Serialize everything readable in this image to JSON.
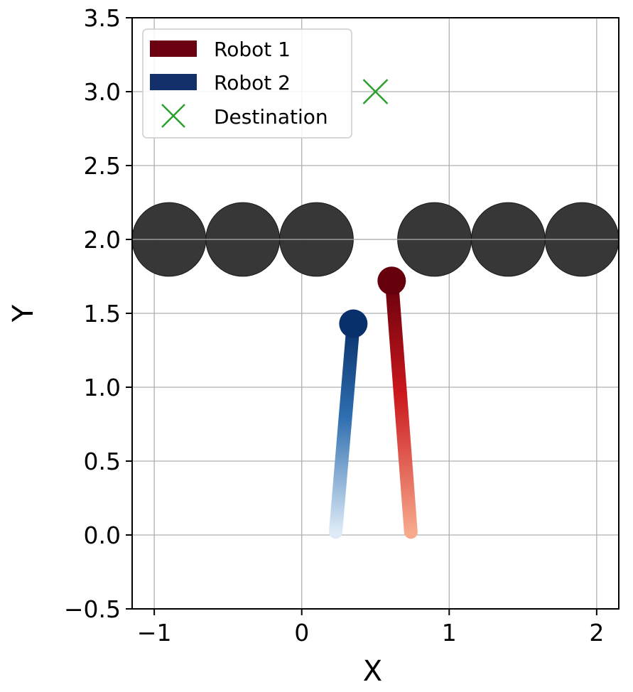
{
  "chart_data": {
    "type": "line",
    "title": "",
    "xlabel": "X",
    "ylabel": "Y",
    "xlim": [
      -1.15,
      2.15
    ],
    "ylim": [
      -0.5,
      3.5
    ],
    "xticks": [
      -1,
      0,
      1,
      2
    ],
    "xtick_labels": [
      "−1",
      "0",
      "1",
      "2"
    ],
    "yticks": [
      -0.5,
      0.0,
      0.5,
      1.0,
      1.5,
      2.0,
      2.5,
      3.0,
      3.5
    ],
    "ytick_labels": [
      "−0.5",
      "0.0",
      "0.5",
      "1.0",
      "1.5",
      "2.0",
      "2.5",
      "3.0",
      "3.5"
    ],
    "grid": true,
    "legend_position": "top-left",
    "series": [
      {
        "name": "Robot 1",
        "kind": "trajectory",
        "color_start": "#f7a98c",
        "color_end": "#67000d",
        "legend_color": "#6b0010",
        "x": [
          0.74,
          0.61
        ],
        "y": [
          0.02,
          1.72
        ]
      },
      {
        "name": "Robot 2",
        "kind": "trajectory",
        "color_start": "#deebf7",
        "color_end": "#08306b",
        "legend_color": "#14306b",
        "x": [
          0.23,
          0.35
        ],
        "y": [
          0.02,
          1.43
        ]
      },
      {
        "name": "Destination",
        "kind": "marker",
        "marker": "x",
        "color": "#2ca02c",
        "x": [
          0.5
        ],
        "y": [
          3.0
        ]
      }
    ],
    "obstacles": {
      "color": "#333333",
      "radius": 0.25,
      "centers": [
        {
          "x": -0.9,
          "y": 2.0
        },
        {
          "x": -0.4,
          "y": 2.0
        },
        {
          "x": 0.1,
          "y": 2.0
        },
        {
          "x": 0.9,
          "y": 2.0
        },
        {
          "x": 1.4,
          "y": 2.0
        },
        {
          "x": 1.9,
          "y": 2.0
        }
      ]
    }
  }
}
